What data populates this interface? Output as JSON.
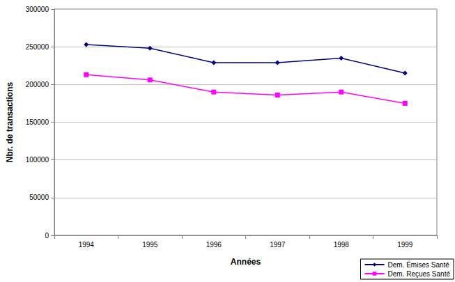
{
  "chart_data": {
    "type": "line",
    "x_label": "Années",
    "y_label": "Nbr. de transactions",
    "categories": [
      "1994",
      "1995",
      "1996",
      "1997",
      "1998",
      "1999"
    ],
    "series": [
      {
        "name": "Dem. Émises Santé",
        "color": "#000080",
        "marker": "diamond",
        "line_style": "solid",
        "values": [
          253000,
          248000,
          229000,
          229000,
          235000,
          215000
        ]
      },
      {
        "name": "Dem. Reçues Santé",
        "color": "#ff00ff",
        "marker": "square",
        "line_style": "solid",
        "values": [
          213000,
          206000,
          190000,
          186000,
          190000,
          175000
        ]
      }
    ],
    "ylim": [
      0,
      300000
    ],
    "yticks": [
      0,
      50000,
      100000,
      150000,
      200000,
      250000,
      300000
    ],
    "grid": true,
    "legend": "lower right"
  }
}
